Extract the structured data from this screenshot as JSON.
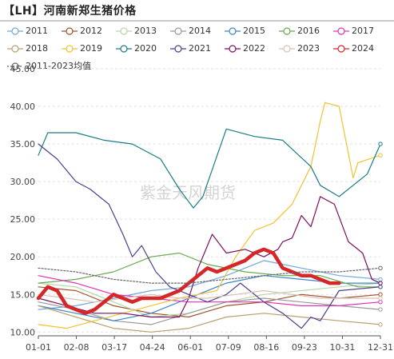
{
  "title": "【LH】河南新郑生猪价格",
  "watermark": "紫金天风期货",
  "chart_data": {
    "type": "line",
    "title": "【LH】河南新郑生猪价格",
    "xlabel": "",
    "ylabel": "",
    "x_ticks": [
      "01-01",
      "02-08",
      "03-17",
      "04-24",
      "06-01",
      "07-09",
      "08-16",
      "09-23",
      "10-31",
      "12-31"
    ],
    "y_ticks": [
      "10.00",
      "15.00",
      "20.00",
      "25.00",
      "30.00",
      "35.00",
      "40.00",
      "45.00"
    ],
    "ylim": [
      9.5,
      45
    ],
    "grid": "horizontal dashed",
    "legend_position": "top",
    "series": [
      {
        "name": "2011",
        "color": "#6fa8dc",
        "dashed": false,
        "width": 1.2,
        "x": [
          0,
          40,
          80,
          120,
          160,
          200,
          240,
          280,
          320,
          364
        ],
        "values": [
          13.0,
          13.5,
          14.5,
          15.5,
          16.0,
          17.5,
          19.5,
          18.5,
          17.5,
          17.0
        ]
      },
      {
        "name": "2012",
        "color": "#a0522d",
        "dashed": false,
        "width": 1.2,
        "x": [
          0,
          40,
          80,
          120,
          160,
          200,
          240,
          280,
          320,
          364
        ],
        "values": [
          16.0,
          15.5,
          13.5,
          12.5,
          12.0,
          13.5,
          14.0,
          15.0,
          14.5,
          15.0
        ]
      },
      {
        "name": "2013",
        "color": "#b6d7a8",
        "dashed": false,
        "width": 1.2,
        "x": [
          0,
          40,
          80,
          120,
          160,
          200,
          240,
          280,
          320,
          364
        ],
        "values": [
          16.5,
          16.0,
          14.0,
          12.0,
          12.5,
          14.0,
          15.0,
          15.5,
          16.0,
          16.5
        ]
      },
      {
        "name": "2014",
        "color": "#999999",
        "dashed": false,
        "width": 1.2,
        "x": [
          0,
          40,
          80,
          120,
          160,
          200,
          240,
          280,
          320,
          364
        ],
        "values": [
          14.0,
          13.0,
          11.5,
          11.0,
          12.5,
          14.0,
          14.5,
          14.0,
          13.5,
          13.0
        ]
      },
      {
        "name": "2015",
        "color": "#3d85c6",
        "dashed": false,
        "width": 1.2,
        "x": [
          0,
          40,
          80,
          120,
          160,
          200,
          240,
          280,
          320,
          364
        ],
        "values": [
          13.5,
          12.5,
          11.5,
          12.5,
          14.5,
          16.5,
          17.5,
          17.0,
          16.5,
          16.5
        ]
      },
      {
        "name": "2016",
        "color": "#6aa84f",
        "dashed": false,
        "width": 1.2,
        "x": [
          0,
          40,
          80,
          120,
          150,
          180,
          220,
          260,
          300,
          340,
          364
        ],
        "values": [
          16.5,
          17.0,
          18.0,
          20.0,
          20.5,
          19.0,
          18.0,
          17.5,
          17.5,
          16.0,
          16.0
        ]
      },
      {
        "name": "2017",
        "color": "#e032b9",
        "dashed": false,
        "width": 1.2,
        "x": [
          0,
          40,
          80,
          120,
          160,
          200,
          240,
          280,
          320,
          364
        ],
        "values": [
          17.5,
          16.5,
          15.0,
          14.5,
          14.0,
          14.0,
          14.0,
          13.5,
          13.5,
          14.0
        ]
      },
      {
        "name": "2018",
        "color": "#b8a070",
        "dashed": false,
        "width": 1.2,
        "x": [
          0,
          40,
          80,
          120,
          160,
          200,
          240,
          280,
          320,
          364
        ],
        "values": [
          13.5,
          12.0,
          10.5,
          10.0,
          10.5,
          12.0,
          12.5,
          12.0,
          11.5,
          11.0
        ]
      },
      {
        "name": "2019",
        "color": "#f1c232",
        "dashed": false,
        "width": 1.2,
        "x": [
          0,
          30,
          60,
          90,
          120,
          150,
          190,
          210,
          230,
          250,
          270,
          290,
          300,
          305,
          320,
          335,
          340,
          364
        ],
        "values": [
          11.0,
          10.5,
          11.5,
          12.5,
          13.5,
          14.5,
          15.5,
          20.0,
          23.5,
          24.5,
          27.0,
          32.0,
          38.0,
          40.5,
          40.0,
          30.5,
          32.5,
          33.5
        ]
      },
      {
        "name": "2020",
        "color": "#1b7d86",
        "dashed": false,
        "width": 1.2,
        "x": [
          0,
          10,
          40,
          70,
          100,
          130,
          150,
          165,
          175,
          200,
          230,
          260,
          290,
          300,
          320,
          350,
          364
        ],
        "values": [
          33.5,
          36.5,
          36.5,
          35.5,
          35.0,
          33.0,
          29.0,
          26.5,
          28.0,
          37.0,
          36.0,
          35.5,
          32.0,
          29.5,
          28.0,
          31.0,
          35.0
        ]
      },
      {
        "name": "2021",
        "color": "#4b3e8f",
        "dashed": false,
        "width": 1.2,
        "x": [
          0,
          20,
          40,
          55,
          75,
          90,
          100,
          110,
          125,
          140,
          160,
          180,
          200,
          215,
          240,
          260,
          280,
          290,
          300,
          320,
          364
        ],
        "values": [
          35.0,
          33.0,
          30.0,
          29.0,
          27.0,
          23.0,
          20.0,
          21.5,
          18.0,
          16.0,
          15.0,
          14.0,
          15.0,
          16.5,
          14.0,
          12.5,
          10.5,
          12.0,
          11.5,
          15.5,
          16.0
        ]
      },
      {
        "name": "2022",
        "color": "#7a1060",
        "dashed": false,
        "width": 1.2,
        "x": [
          0,
          30,
          60,
          90,
          120,
          150,
          160,
          170,
          185,
          200,
          220,
          240,
          255,
          260,
          270,
          280,
          290,
          300,
          315,
          330,
          345,
          355,
          364
        ],
        "values": [
          14.5,
          13.5,
          12.5,
          12.5,
          12.0,
          12.0,
          14.5,
          18.5,
          23.0,
          20.5,
          21.0,
          20.0,
          21.0,
          22.0,
          22.5,
          25.5,
          24.0,
          28.0,
          27.0,
          22.0,
          20.5,
          17.0,
          16.5
        ]
      },
      {
        "name": "2023",
        "color": "#d9c0b8",
        "dashed": false,
        "width": 1.2,
        "x": [
          0,
          30,
          60,
          90,
          120,
          150,
          180,
          210,
          240,
          270,
          300,
          330,
          364
        ],
        "values": [
          15.0,
          14.5,
          14.0,
          14.5,
          15.0,
          14.5,
          14.5,
          15.0,
          15.5,
          15.0,
          14.5,
          14.5,
          14.5
        ]
      },
      {
        "name": "2024",
        "color": "#d62728",
        "dashed": false,
        "width": 4.5,
        "x": [
          0,
          10,
          20,
          30,
          40,
          50,
          60,
          70,
          80,
          90,
          100,
          110,
          120,
          130,
          140,
          150,
          160,
          170,
          180,
          190,
          200,
          210,
          220,
          230,
          240,
          250,
          260,
          270,
          280,
          290,
          300,
          310,
          320
        ],
        "values": [
          14.5,
          16.0,
          15.5,
          13.5,
          13.0,
          12.5,
          13.0,
          14.0,
          15.0,
          14.5,
          14.0,
          14.5,
          14.5,
          14.5,
          15.0,
          15.5,
          16.5,
          17.5,
          18.5,
          18.0,
          18.5,
          19.0,
          19.5,
          20.5,
          21.0,
          20.5,
          18.5,
          18.0,
          17.5,
          17.5,
          17.0,
          16.5,
          16.5
        ]
      },
      {
        "name": "2011-2023均值",
        "color": "#666666",
        "dashed": true,
        "width": 1.2,
        "x": [
          0,
          40,
          80,
          120,
          160,
          200,
          240,
          280,
          320,
          364
        ],
        "values": [
          18.5,
          18.0,
          17.0,
          16.5,
          16.5,
          17.0,
          17.5,
          18.0,
          18.0,
          18.5
        ]
      }
    ]
  }
}
